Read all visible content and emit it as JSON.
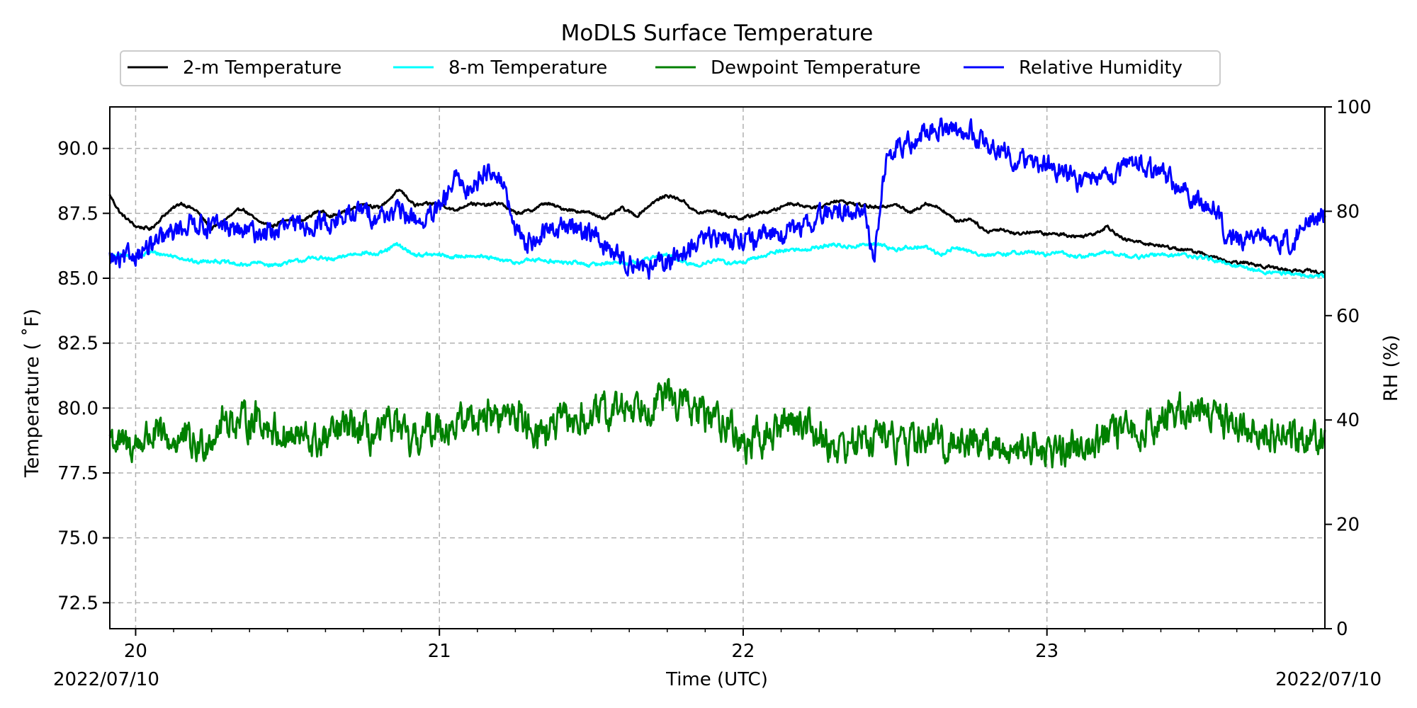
{
  "chart_data": {
    "type": "line",
    "title": "MoDLS Surface Temperature",
    "xlabel": "Time (UTC)",
    "ylabel": "Temperature ( $^\\circ$F)",
    "ylabel_display": "Temperature ( ˚F)",
    "y2label": "RH (%)",
    "xlim": [
      19.915,
      23.915
    ],
    "ylim": [
      71.5,
      91.6
    ],
    "y2lim": [
      0,
      100
    ],
    "x_ticks": [
      20,
      21,
      22,
      23
    ],
    "x_tick_labels": [
      "20",
      "21",
      "22",
      "23"
    ],
    "y_ticks": [
      72.5,
      75.0,
      77.5,
      80.0,
      82.5,
      85.0,
      87.5,
      90.0
    ],
    "y_tick_labels": [
      "72.5",
      "75.0",
      "77.5",
      "80.0",
      "82.5",
      "85.0",
      "87.5",
      "90.0"
    ],
    "y2_ticks": [
      0,
      20,
      40,
      60,
      80,
      100
    ],
    "y2_tick_labels": [
      "0",
      "20",
      "40",
      "60",
      "80",
      "100"
    ],
    "start_date_label": "2022/07/10",
    "end_date_label": "2022/07/10",
    "grid": true,
    "legend_position": "top-center",
    "series": [
      {
        "name": "2-m Temperature",
        "axis": "left",
        "color": "#000000",
        "noise": 0.05,
        "x": [
          19.915,
          19.95,
          20.0,
          20.05,
          20.1,
          20.15,
          20.2,
          20.25,
          20.3,
          20.35,
          20.4,
          20.45,
          20.5,
          20.55,
          20.6,
          20.65,
          20.7,
          20.75,
          20.8,
          20.87,
          20.92,
          21.0,
          21.05,
          21.1,
          21.15,
          21.2,
          21.25,
          21.3,
          21.35,
          21.4,
          21.45,
          21.5,
          21.55,
          21.6,
          21.65,
          21.7,
          21.75,
          21.8,
          21.85,
          21.9,
          21.95,
          22.0,
          22.05,
          22.1,
          22.15,
          22.2,
          22.25,
          22.3,
          22.35,
          22.4,
          22.45,
          22.5,
          22.55,
          22.6,
          22.65,
          22.7,
          22.75,
          22.8,
          22.85,
          22.9,
          22.95,
          23.0,
          23.05,
          23.1,
          23.15,
          23.2,
          23.25,
          23.3,
          23.35,
          23.4,
          23.45,
          23.5,
          23.55,
          23.6,
          23.65,
          23.7,
          23.75,
          23.8,
          23.85,
          23.915
        ],
        "y": [
          88.2,
          87.5,
          87.0,
          86.9,
          87.5,
          87.9,
          87.6,
          86.9,
          87.3,
          87.7,
          87.2,
          87.0,
          87.3,
          87.2,
          87.6,
          87.4,
          87.6,
          87.9,
          87.7,
          88.4,
          87.8,
          87.9,
          87.6,
          87.9,
          87.8,
          87.9,
          87.5,
          87.6,
          87.9,
          87.7,
          87.6,
          87.5,
          87.3,
          87.7,
          87.4,
          87.9,
          88.2,
          88.0,
          87.5,
          87.6,
          87.4,
          87.3,
          87.5,
          87.6,
          87.9,
          87.8,
          87.7,
          88.0,
          87.9,
          87.8,
          87.7,
          87.9,
          87.5,
          87.9,
          87.7,
          87.2,
          87.3,
          86.8,
          86.9,
          86.7,
          86.8,
          86.7,
          86.7,
          86.6,
          86.7,
          87.0,
          86.5,
          86.4,
          86.3,
          86.2,
          86.1,
          86.0,
          85.8,
          85.6,
          85.6,
          85.5,
          85.4,
          85.3,
          85.3,
          85.2
        ]
      },
      {
        "name": "8-m Temperature",
        "axis": "left",
        "color": "#00ffff",
        "noise": 0.06,
        "x": [
          19.915,
          19.95,
          20.0,
          20.05,
          20.1,
          20.15,
          20.2,
          20.25,
          20.3,
          20.35,
          20.4,
          20.45,
          20.5,
          20.55,
          20.6,
          20.65,
          20.7,
          20.75,
          20.8,
          20.86,
          20.92,
          21.0,
          21.05,
          21.1,
          21.15,
          21.2,
          21.25,
          21.3,
          21.35,
          21.4,
          21.45,
          21.5,
          21.55,
          21.6,
          21.65,
          21.7,
          21.75,
          21.8,
          21.85,
          21.9,
          21.95,
          22.0,
          22.05,
          22.1,
          22.15,
          22.2,
          22.25,
          22.3,
          22.35,
          22.4,
          22.45,
          22.5,
          22.55,
          22.6,
          22.65,
          22.7,
          22.75,
          22.8,
          22.85,
          22.9,
          22.95,
          23.0,
          23.05,
          23.1,
          23.15,
          23.2,
          23.25,
          23.3,
          23.35,
          23.4,
          23.45,
          23.5,
          23.55,
          23.6,
          23.65,
          23.7,
          23.75,
          23.8,
          23.85,
          23.915
        ],
        "y": [
          85.8,
          85.9,
          85.8,
          86.0,
          85.9,
          85.8,
          85.6,
          85.7,
          85.6,
          85.5,
          85.6,
          85.5,
          85.6,
          85.7,
          85.8,
          85.7,
          85.9,
          86.0,
          85.9,
          86.3,
          85.9,
          85.9,
          85.8,
          85.9,
          85.8,
          85.7,
          85.6,
          85.7,
          85.7,
          85.6,
          85.6,
          85.5,
          85.6,
          85.6,
          85.6,
          85.8,
          85.9,
          85.6,
          85.5,
          85.7,
          85.6,
          85.6,
          85.8,
          86.0,
          86.1,
          86.1,
          86.2,
          86.3,
          86.2,
          86.3,
          86.3,
          86.1,
          86.2,
          86.2,
          85.9,
          86.2,
          86.0,
          85.9,
          85.9,
          86.0,
          86.0,
          85.9,
          86.0,
          85.8,
          85.9,
          86.0,
          85.9,
          85.8,
          85.9,
          85.9,
          85.9,
          85.8,
          85.7,
          85.5,
          85.4,
          85.3,
          85.2,
          85.2,
          85.1,
          85.1
        ]
      },
      {
        "name": "Dewpoint Temperature",
        "axis": "left",
        "color": "#008000",
        "noise": 0.55,
        "x": [
          19.915,
          19.95,
          20.0,
          20.05,
          20.1,
          20.15,
          20.2,
          20.25,
          20.3,
          20.35,
          20.4,
          20.45,
          20.5,
          20.55,
          20.6,
          20.65,
          20.7,
          20.75,
          20.8,
          20.85,
          20.9,
          20.95,
          21.0,
          21.05,
          21.1,
          21.15,
          21.2,
          21.25,
          21.3,
          21.35,
          21.4,
          21.45,
          21.5,
          21.55,
          21.6,
          21.65,
          21.7,
          21.75,
          21.8,
          21.85,
          21.9,
          21.95,
          22.0,
          22.05,
          22.1,
          22.15,
          22.2,
          22.25,
          22.3,
          22.35,
          22.4,
          22.45,
          22.5,
          22.55,
          22.6,
          22.65,
          22.7,
          22.75,
          22.8,
          22.85,
          22.9,
          22.95,
          23.0,
          23.05,
          23.1,
          23.15,
          23.2,
          23.25,
          23.3,
          23.35,
          23.4,
          23.45,
          23.5,
          23.55,
          23.6,
          23.65,
          23.7,
          23.75,
          23.8,
          23.85,
          23.915
        ],
        "y": [
          79.0,
          78.5,
          78.6,
          79.0,
          78.7,
          78.8,
          78.4,
          79.0,
          79.6,
          79.4,
          79.7,
          79.2,
          78.9,
          78.8,
          78.6,
          78.9,
          79.3,
          79.0,
          78.8,
          79.5,
          78.5,
          79.0,
          79.4,
          79.3,
          79.6,
          79.8,
          79.6,
          79.8,
          79.3,
          79.1,
          79.4,
          79.5,
          79.6,
          79.8,
          80.0,
          80.2,
          80.3,
          80.4,
          80.2,
          79.8,
          79.6,
          79.5,
          78.5,
          78.8,
          79.0,
          79.6,
          79.5,
          79.0,
          78.5,
          78.6,
          78.8,
          79.0,
          78.7,
          78.6,
          78.9,
          78.7,
          78.6,
          78.9,
          78.6,
          78.3,
          78.5,
          78.6,
          78.3,
          78.4,
          78.6,
          78.8,
          78.9,
          79.0,
          79.2,
          79.4,
          79.7,
          79.9,
          80.0,
          79.8,
          79.5,
          79.3,
          79.2,
          79.0,
          78.8,
          78.9,
          79.1
        ]
      },
      {
        "name": "Relative Humidity",
        "axis": "right",
        "color": "#0000ff",
        "noise": 1.6,
        "x": [
          19.915,
          19.95,
          20.0,
          20.05,
          20.1,
          20.15,
          20.2,
          20.25,
          20.3,
          20.35,
          20.4,
          20.45,
          20.5,
          20.55,
          20.6,
          20.65,
          20.7,
          20.75,
          20.8,
          20.85,
          20.9,
          20.95,
          21.0,
          21.05,
          21.1,
          21.15,
          21.2,
          21.25,
          21.3,
          21.35,
          21.4,
          21.45,
          21.5,
          21.55,
          21.6,
          21.65,
          21.7,
          21.75,
          21.8,
          21.85,
          21.9,
          21.95,
          22.0,
          22.05,
          22.1,
          22.15,
          22.2,
          22.25,
          22.3,
          22.35,
          22.4,
          22.43,
          22.47,
          22.5,
          22.55,
          22.6,
          22.65,
          22.7,
          22.75,
          22.8,
          22.85,
          22.9,
          22.95,
          23.0,
          23.05,
          23.1,
          23.15,
          23.2,
          23.25,
          23.3,
          23.35,
          23.4,
          23.45,
          23.5,
          23.55,
          23.6,
          23.65,
          23.7,
          23.75,
          23.8,
          23.85,
          23.915
        ],
        "y": [
          71,
          70,
          72,
          73,
          75,
          77,
          78,
          77,
          77,
          76,
          76,
          76,
          77,
          77,
          78,
          78,
          79,
          80,
          79,
          80,
          79,
          78,
          80,
          86,
          84,
          88,
          87,
          76,
          74,
          76,
          77,
          77,
          76,
          73,
          71,
          70,
          69,
          70,
          72,
          74,
          75,
          75,
          75,
          74,
          76,
          76,
          77,
          79,
          80,
          80,
          80,
          70,
          90,
          92,
          93,
          95,
          96,
          96,
          95,
          93,
          92,
          90,
          89,
          89,
          88,
          86,
          85,
          87,
          88,
          90,
          88,
          86,
          84,
          82,
          80,
          75,
          74,
          76,
          75,
          74,
          77,
          80
        ]
      }
    ]
  }
}
